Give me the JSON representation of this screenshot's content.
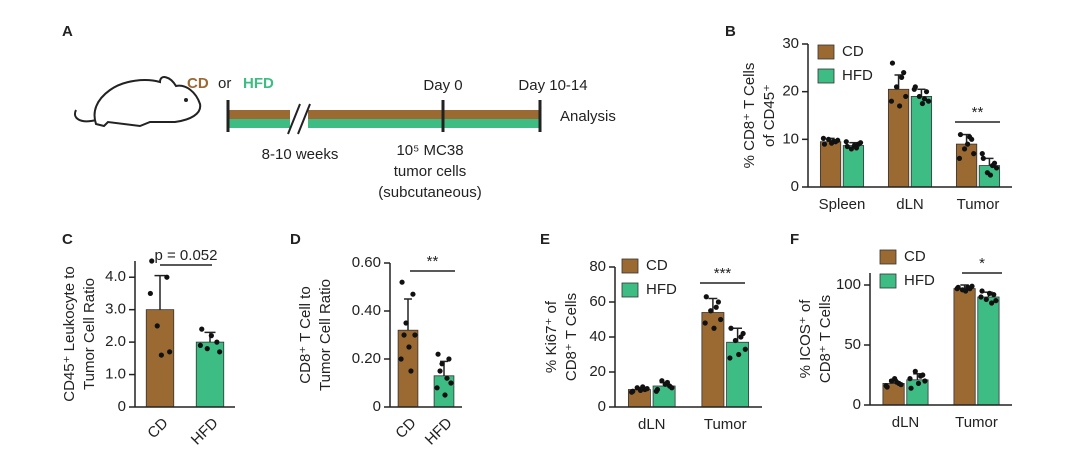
{
  "panel_a": {
    "label": "A",
    "diet_cd": "CD",
    "or": "or",
    "diet_hfd": "HFD",
    "duration": "8-10 weeks",
    "day0": "Day 0",
    "day_end": "Day 10-14",
    "analysis": "Analysis",
    "injection": [
      "10⁵ MC38",
      "tumor cells",
      "(subcutaneous)"
    ]
  },
  "chart_data": [
    {
      "type": "bar",
      "panel": "B",
      "ylabel": [
        "% CD8⁺ T Cells",
        "of CD45⁺"
      ],
      "categories": [
        "Spleen",
        "dLN",
        "Tumor"
      ],
      "series": [
        {
          "name": "CD",
          "color": "#9b6a32",
          "values": [
            9.5,
            20.5,
            9
          ],
          "errors": [
            0.7,
            3,
            2
          ],
          "points": [
            [
              9,
              9.5,
              10,
              9.8,
              9.2,
              10.2,
              9.6
            ],
            [
              26,
              24,
              21,
              19,
              17,
              18,
              23
            ],
            [
              11,
              10,
              8,
              7,
              9,
              6,
              10.5
            ]
          ]
        },
        {
          "name": "HFD",
          "color": "#3dbd84",
          "values": [
            8.7,
            19,
            4.5
          ],
          "errors": [
            0.6,
            1.5,
            1.5
          ],
          "points": [
            [
              8.5,
              9,
              8,
              9.3,
              8.7,
              9.5,
              8.2
            ],
            [
              21,
              20,
              19,
              18,
              17.5,
              20.5,
              18.5
            ],
            [
              6,
              5,
              3,
              4,
              2.5,
              7,
              4.5
            ]
          ]
        }
      ],
      "ylim": [
        0,
        30
      ],
      "yticks": [
        0,
        10,
        20,
        30
      ],
      "legend": "upper left",
      "annotation": "**"
    },
    {
      "type": "bar",
      "panel": "C",
      "ylabel": [
        "CD45⁺ Leukocyte to",
        "Tumor Cell Ratio"
      ],
      "categories": [
        "CD",
        "HFD"
      ],
      "colors": [
        "#9b6a32",
        "#3dbd84"
      ],
      "values": [
        3.0,
        2.0
      ],
      "errors": [
        1.05,
        0.3
      ],
      "points": [
        [
          4.5,
          4.0,
          2.5,
          1.7,
          1.6,
          3.5
        ],
        [
          2.4,
          2.0,
          1.8,
          1.7,
          2.2,
          1.9
        ]
      ],
      "ylim": [
        0,
        4.5
      ],
      "yticks": [
        0,
        {
          "value": 1,
          "label": "1.0"
        },
        {
          "value": 2,
          "label": "2.0"
        },
        {
          "value": 3,
          "label": "3.0"
        },
        {
          "value": 4,
          "label": "4.0"
        }
      ],
      "annotation": "p = 0.052"
    },
    {
      "type": "bar",
      "panel": "D",
      "ylabel": [
        "CD8⁺ T Cell to",
        "Tumor Cell Ratio"
      ],
      "categories": [
        "CD",
        "HFD"
      ],
      "colors": [
        "#9b6a32",
        "#3dbd84"
      ],
      "values": [
        0.32,
        0.13
      ],
      "errors": [
        0.13,
        0.06
      ],
      "points": [
        [
          0.52,
          0.47,
          0.35,
          0.3,
          0.25,
          0.2,
          0.15,
          0.3
        ],
        [
          0.22,
          0.2,
          0.18,
          0.1,
          0.05,
          0.08,
          0.12,
          0.15
        ]
      ],
      "ylim": [
        0,
        0.6
      ],
      "yticks": [
        0,
        {
          "value": 0.2,
          "label": "0.20"
        },
        {
          "value": 0.4,
          "label": "0.40"
        },
        {
          "value": 0.6,
          "label": "0.60"
        }
      ],
      "annotation": "**"
    },
    {
      "type": "bar",
      "panel": "E",
      "ylabel": [
        "% Ki67⁺ of",
        "CD8⁺ T Cells"
      ],
      "categories": [
        "dLN",
        "Tumor"
      ],
      "series": [
        {
          "name": "CD",
          "color": "#9b6a32",
          "values": [
            10,
            54
          ],
          "errors": [
            1,
            8
          ],
          "points": [
            [
              9,
              10,
              11,
              10.5,
              9.5,
              8.5,
              11.5
            ],
            [
              63,
              60,
              55,
              50,
              45,
              48,
              57
            ]
          ]
        },
        {
          "name": "HFD",
          "color": "#3dbd84",
          "values": [
            12,
            37
          ],
          "errors": [
            2,
            8
          ],
          "points": [
            [
              10,
              12,
              15,
              11,
              13,
              9,
              14
            ],
            [
              45,
              42,
              38,
              33,
              30,
              28,
              40
            ]
          ]
        }
      ],
      "ylim": [
        0,
        80
      ],
      "yticks": [
        0,
        20,
        40,
        60,
        80
      ],
      "legend": "upper left",
      "annotation": "***"
    },
    {
      "type": "bar",
      "panel": "F",
      "ylabel": [
        "% ICOS⁺ of",
        "CD8⁺ T Cells"
      ],
      "categories": [
        "dLN",
        "Tumor"
      ],
      "series": [
        {
          "name": "CD",
          "color": "#9b6a32",
          "values": [
            18,
            97
          ],
          "errors": [
            3,
            3
          ],
          "points": [
            [
              15,
              18,
              20,
              17,
              22,
              16,
              19
            ],
            [
              98,
              97,
              96,
              99,
              95,
              97,
              98
            ]
          ]
        },
        {
          "name": "HFD",
          "color": "#3dbd84",
          "values": [
            21,
            90
          ],
          "errors": [
            5,
            4
          ],
          "points": [
            [
              14,
              25,
              28,
              20,
              18,
              22,
              24
            ],
            [
              95,
              92,
              88,
              87,
              93,
              90,
              85
            ]
          ]
        }
      ],
      "ylim": [
        0,
        110
      ],
      "yticks": [
        0,
        50,
        100
      ],
      "legend": "upper left",
      "annotation": "*"
    }
  ]
}
